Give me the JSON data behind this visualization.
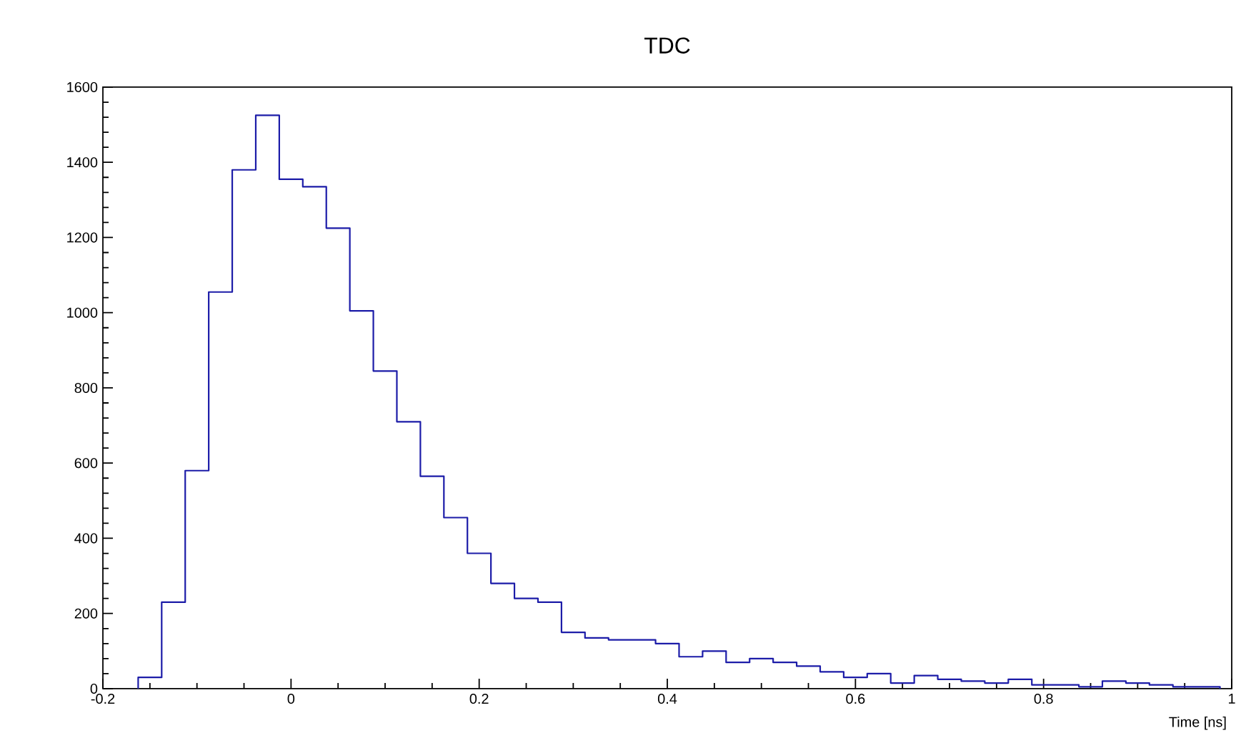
{
  "chart_data": {
    "type": "histogram",
    "title": "TDC",
    "xlabel": "Time [ns]",
    "color": "#1c1ca8",
    "bins": [
      -0.1625,
      -0.1375,
      -0.1125,
      -0.0875,
      -0.0625,
      -0.0375,
      -0.0125,
      0.0125,
      0.0375,
      0.0625,
      0.0875,
      0.1125,
      0.1375,
      0.1625,
      0.1875,
      0.2125,
      0.2375,
      0.2625,
      0.2875,
      0.3125,
      0.3375,
      0.3625,
      0.3875,
      0.4125,
      0.4375,
      0.4625,
      0.4875,
      0.5125,
      0.5375,
      0.5625,
      0.5875,
      0.6125,
      0.6375,
      0.6625,
      0.6875,
      0.7125,
      0.7375,
      0.7625,
      0.7875,
      0.8125,
      0.8375,
      0.8625,
      0.8875,
      0.9125,
      0.9375,
      0.9625,
      0.9875
    ],
    "values": [
      30,
      230,
      580,
      1055,
      1380,
      1525,
      1355,
      1335,
      1225,
      1005,
      845,
      710,
      565,
      455,
      360,
      280,
      240,
      230,
      150,
      135,
      130,
      130,
      120,
      85,
      100,
      70,
      80,
      70,
      60,
      45,
      30,
      40,
      15,
      35,
      25,
      20,
      15,
      25,
      10,
      10,
      5,
      20,
      15,
      10,
      5,
      5
    ],
    "xlim": [
      -0.2,
      1
    ],
    "ylim": [
      0,
      1600
    ],
    "xticks": [
      -0.2,
      0,
      0.2,
      0.4,
      0.6,
      0.8,
      1
    ],
    "yticks": [
      0,
      200,
      400,
      600,
      800,
      1000,
      1200,
      1400,
      1600
    ],
    "grid": false
  }
}
